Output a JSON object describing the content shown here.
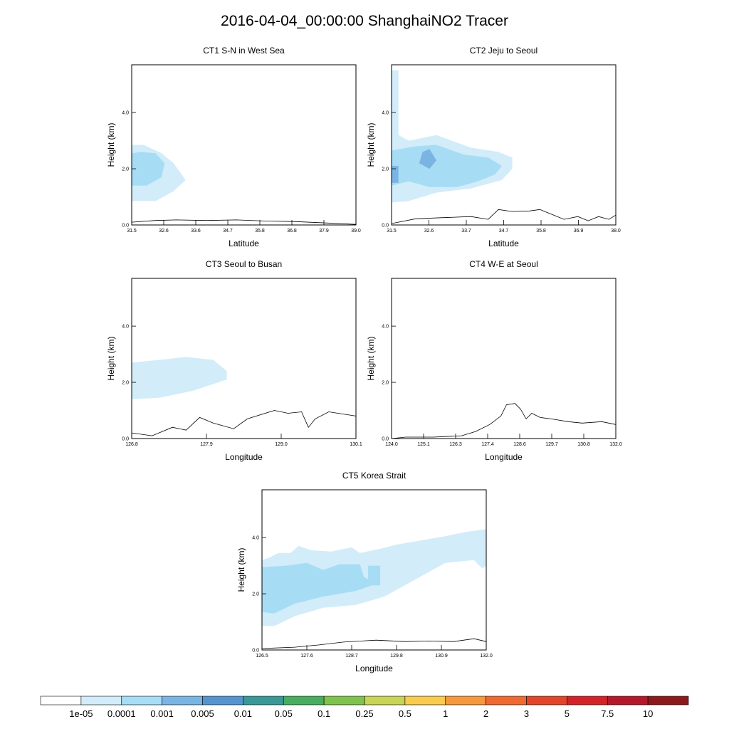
{
  "page_title": "2016-04-04_00:00:00 ShanghaiNO2 Tracer",
  "colors": {
    "band1": "#d2ecf9",
    "band2": "#a7dcf5",
    "band3": "#7ab4e2",
    "terrain": "#000000"
  },
  "colorbar": {
    "colors": [
      "#ffffff",
      "#d2ecf9",
      "#a7dcf5",
      "#7ab4e2",
      "#5694d0",
      "#3a9896",
      "#48ad5e",
      "#7fc24e",
      "#c7d455",
      "#f9cb4e",
      "#f6993d",
      "#ee6a31",
      "#e2452a",
      "#d42229",
      "#b4182a",
      "#8c1a1d"
    ],
    "labels": [
      "1e-05",
      "0.0001",
      "0.001",
      "0.005",
      "0.01",
      "0.05",
      "0.1",
      "0.25",
      "0.5",
      "1",
      "2",
      "3",
      "5",
      "7.5",
      "10"
    ]
  },
  "chart_data": [
    {
      "id": "ct1",
      "type": "area",
      "title": "CT1 S-N in West Sea",
      "xlabel": "Latitude",
      "ylabel": "Height (km)",
      "xlim": [
        31.5,
        39.0
      ],
      "ylim": [
        0,
        5.7
      ],
      "xticks": [
        "31.5",
        "32.6",
        "33.6",
        "34.7",
        "35.8",
        "36.8",
        "37.9",
        "39.0"
      ],
      "yticks": [
        {
          "v": 0,
          "label": "0.0"
        },
        {
          "v": 2,
          "label": "2.0"
        },
        {
          "v": 4,
          "label": "4.0"
        }
      ],
      "terrain": [
        [
          31.5,
          0.1
        ],
        [
          32.3,
          0.16
        ],
        [
          33.0,
          0.18
        ],
        [
          34.0,
          0.16
        ],
        [
          35.0,
          0.18
        ],
        [
          36.0,
          0.14
        ],
        [
          37.0,
          0.12
        ],
        [
          38.0,
          0.07
        ],
        [
          39.0,
          0.02
        ]
      ],
      "contours": [
        {
          "band": 1,
          "points": [
            [
              31.5,
              0.85
            ],
            [
              32.3,
              0.85
            ],
            [
              32.9,
              1.2
            ],
            [
              33.3,
              1.6
            ],
            [
              32.9,
              2.2
            ],
            [
              32.5,
              2.55
            ],
            [
              31.9,
              2.85
            ],
            [
              31.5,
              2.85
            ]
          ]
        },
        {
          "band": 2,
          "points": [
            [
              31.5,
              1.4
            ],
            [
              32.0,
              1.4
            ],
            [
              32.5,
              1.7
            ],
            [
              32.6,
              2.2
            ],
            [
              32.3,
              2.55
            ],
            [
              31.8,
              2.6
            ],
            [
              31.5,
              2.55
            ]
          ]
        }
      ]
    },
    {
      "id": "ct2",
      "type": "area",
      "title": "CT2 Jeju to Seoul",
      "xlabel": "Latitude",
      "ylabel": "Height (km)",
      "xlim": [
        31.5,
        38.0
      ],
      "ylim": [
        0,
        5.7
      ],
      "xticks": [
        "31.5",
        "32.6",
        "33.7",
        "34.7",
        "35.8",
        "36.9",
        "38.0"
      ],
      "yticks": [
        {
          "v": 0,
          "label": "0.0"
        },
        {
          "v": 2,
          "label": "2.0"
        },
        {
          "v": 4,
          "label": "4.0"
        }
      ],
      "terrain": [
        [
          31.5,
          0.05
        ],
        [
          32.2,
          0.22
        ],
        [
          33.0,
          0.26
        ],
        [
          33.8,
          0.3
        ],
        [
          34.3,
          0.2
        ],
        [
          34.6,
          0.55
        ],
        [
          35.0,
          0.48
        ],
        [
          35.5,
          0.5
        ],
        [
          35.8,
          0.55
        ],
        [
          36.1,
          0.4
        ],
        [
          36.5,
          0.2
        ],
        [
          36.9,
          0.3
        ],
        [
          37.2,
          0.15
        ],
        [
          37.5,
          0.3
        ],
        [
          37.8,
          0.2
        ],
        [
          38.0,
          0.35
        ]
      ],
      "contours": [
        {
          "band": 1,
          "points": [
            [
              31.5,
              0.8
            ],
            [
              32.0,
              0.85
            ],
            [
              32.8,
              1.15
            ],
            [
              33.8,
              1.3
            ],
            [
              34.7,
              1.6
            ],
            [
              35.0,
              2.0
            ],
            [
              35.0,
              2.4
            ],
            [
              34.6,
              2.6
            ],
            [
              33.8,
              2.75
            ],
            [
              32.8,
              3.2
            ],
            [
              32.0,
              3.0
            ],
            [
              31.7,
              3.2
            ],
            [
              31.7,
              5.5
            ],
            [
              31.5,
              5.5
            ]
          ]
        },
        {
          "band": 2,
          "points": [
            [
              31.5,
              1.4
            ],
            [
              32.0,
              1.55
            ],
            [
              32.6,
              1.35
            ],
            [
              33.4,
              1.35
            ],
            [
              34.0,
              1.55
            ],
            [
              34.5,
              1.8
            ],
            [
              34.7,
              2.1
            ],
            [
              34.3,
              2.4
            ],
            [
              33.6,
              2.5
            ],
            [
              32.8,
              2.85
            ],
            [
              32.2,
              2.8
            ],
            [
              31.5,
              2.65
            ]
          ]
        },
        {
          "band": 3,
          "points": [
            [
              32.3,
              2.2
            ],
            [
              32.6,
              2.0
            ],
            [
              32.8,
              2.3
            ],
            [
              32.6,
              2.7
            ],
            [
              32.4,
              2.6
            ]
          ]
        },
        {
          "band": 3,
          "points": [
            [
              31.5,
              1.5
            ],
            [
              31.7,
              1.5
            ],
            [
              31.7,
              2.1
            ],
            [
              31.5,
              2.1
            ]
          ]
        }
      ]
    },
    {
      "id": "ct3",
      "type": "area",
      "title": "CT3 Seoul to Busan",
      "xlabel": "Longitude",
      "ylabel": "Height (km)",
      "xlim": [
        126.8,
        130.1
      ],
      "ylim": [
        0,
        5.7
      ],
      "xticks": [
        "126.8",
        "127.9",
        "129.0",
        "130.1"
      ],
      "yticks": [
        {
          "v": 0,
          "label": "0.0"
        },
        {
          "v": 2,
          "label": "2.0"
        },
        {
          "v": 4,
          "label": "4.0"
        }
      ],
      "terrain": [
        [
          126.8,
          0.2
        ],
        [
          127.1,
          0.1
        ],
        [
          127.4,
          0.4
        ],
        [
          127.6,
          0.3
        ],
        [
          127.8,
          0.75
        ],
        [
          128.0,
          0.55
        ],
        [
          128.3,
          0.35
        ],
        [
          128.5,
          0.7
        ],
        [
          128.9,
          1.0
        ],
        [
          129.1,
          0.9
        ],
        [
          129.3,
          0.95
        ],
        [
          129.4,
          0.4
        ],
        [
          129.5,
          0.7
        ],
        [
          129.7,
          0.95
        ],
        [
          130.1,
          0.8
        ]
      ],
      "contours": [
        {
          "band": 1,
          "points": [
            [
              126.8,
              1.4
            ],
            [
              127.2,
              1.45
            ],
            [
              127.7,
              1.7
            ],
            [
              128.2,
              2.1
            ],
            [
              128.2,
              2.4
            ],
            [
              128.0,
              2.8
            ],
            [
              127.6,
              2.9
            ],
            [
              127.2,
              2.8
            ],
            [
              126.8,
              2.7
            ]
          ]
        }
      ]
    },
    {
      "id": "ct4",
      "type": "area",
      "title": "CT4 W-E at Seoul",
      "xlabel": "Longitude",
      "ylabel": "Height (km)",
      "xlim": [
        124.0,
        132.0
      ],
      "ylim": [
        0,
        5.7
      ],
      "xticks": [
        "124.0",
        "125.1",
        "126.3",
        "127.4",
        "128.6",
        "129.7",
        "130.8",
        "132.0"
      ],
      "yticks": [
        {
          "v": 0,
          "label": "0.0"
        },
        {
          "v": 2,
          "label": "2.0"
        },
        {
          "v": 4,
          "label": "4.0"
        }
      ],
      "terrain": [
        [
          124.0,
          0.0
        ],
        [
          124.5,
          0.05
        ],
        [
          125.5,
          0.05
        ],
        [
          126.5,
          0.1
        ],
        [
          127.0,
          0.25
        ],
        [
          127.5,
          0.5
        ],
        [
          127.9,
          0.8
        ],
        [
          128.1,
          1.2
        ],
        [
          128.4,
          1.25
        ],
        [
          128.6,
          1.05
        ],
        [
          128.8,
          0.7
        ],
        [
          129.0,
          0.9
        ],
        [
          129.3,
          0.75
        ],
        [
          129.7,
          0.7
        ],
        [
          130.3,
          0.6
        ],
        [
          130.8,
          0.55
        ],
        [
          131.5,
          0.6
        ],
        [
          132.0,
          0.5
        ]
      ],
      "contours": []
    },
    {
      "id": "ct5",
      "type": "area",
      "title": "CT5 Korea Strait",
      "xlabel": "Longitude",
      "ylabel": "Height (km)",
      "xlim": [
        126.5,
        132.0
      ],
      "ylim": [
        0,
        5.7
      ],
      "xticks": [
        "126.5",
        "127.6",
        "128.7",
        "129.8",
        "130.9",
        "132.0"
      ],
      "yticks": [
        {
          "v": 0,
          "label": "0.0"
        },
        {
          "v": 2,
          "label": "2.0"
        },
        {
          "v": 4,
          "label": "4.0"
        }
      ],
      "terrain": [
        [
          126.5,
          0.05
        ],
        [
          127.3,
          0.1
        ],
        [
          127.9,
          0.18
        ],
        [
          128.5,
          0.28
        ],
        [
          129.3,
          0.35
        ],
        [
          130.0,
          0.3
        ],
        [
          130.6,
          0.32
        ],
        [
          131.2,
          0.3
        ],
        [
          131.7,
          0.4
        ],
        [
          132.0,
          0.3
        ]
      ],
      "contours": [
        {
          "band": 1,
          "points": [
            [
              126.5,
              0.85
            ],
            [
              126.8,
              0.85
            ],
            [
              127.3,
              1.2
            ],
            [
              128.0,
              1.5
            ],
            [
              128.8,
              1.6
            ],
            [
              129.5,
              1.9
            ],
            [
              130.0,
              2.3
            ],
            [
              130.5,
              2.7
            ],
            [
              131.0,
              3.1
            ],
            [
              131.7,
              3.2
            ],
            [
              131.9,
              2.9
            ],
            [
              132.0,
              3.0
            ],
            [
              132.0,
              4.3
            ],
            [
              131.5,
              4.2
            ],
            [
              131.0,
              4.05
            ],
            [
              130.4,
              3.9
            ],
            [
              129.8,
              3.75
            ],
            [
              129.4,
              3.6
            ],
            [
              128.9,
              3.45
            ],
            [
              128.7,
              3.65
            ],
            [
              128.2,
              3.5
            ],
            [
              127.7,
              3.55
            ],
            [
              127.4,
              3.7
            ],
            [
              127.2,
              3.45
            ],
            [
              126.9,
              3.45
            ],
            [
              126.7,
              3.3
            ],
            [
              126.5,
              3.2
            ]
          ]
        },
        {
          "band": 2,
          "points": [
            [
              126.5,
              1.35
            ],
            [
              126.8,
              1.3
            ],
            [
              127.3,
              1.65
            ],
            [
              128.0,
              1.9
            ],
            [
              128.8,
              2.1
            ],
            [
              129.3,
              2.35
            ],
            [
              129.0,
              2.6
            ],
            [
              128.9,
              3.05
            ],
            [
              128.4,
              3.05
            ],
            [
              128.0,
              2.85
            ],
            [
              127.6,
              3.1
            ],
            [
              127.1,
              3.0
            ],
            [
              126.5,
              2.95
            ]
          ]
        },
        {
          "band": 2,
          "points": [
            [
              129.1,
              2.3
            ],
            [
              129.4,
              2.3
            ],
            [
              129.4,
              3.0
            ],
            [
              129.1,
              3.0
            ]
          ]
        }
      ]
    }
  ]
}
